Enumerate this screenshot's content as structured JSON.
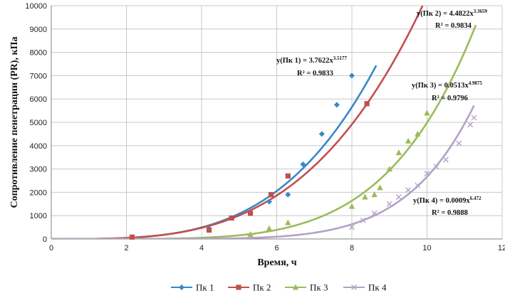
{
  "chart_data": {
    "type": "scatter",
    "title": "",
    "xlabel": "Время, ч",
    "ylabel": "Сопротивление пенетрации (PR), кПа",
    "xlim": [
      0,
      12
    ],
    "ylim": [
      0,
      10000
    ],
    "x_ticks": [
      "0",
      "2",
      "4",
      "6",
      "8",
      "10",
      "12"
    ],
    "y_ticks": [
      "0",
      "1000",
      "2000",
      "3000",
      "4000",
      "5000",
      "6000",
      "7000",
      "8000",
      "9000",
      "10000"
    ],
    "grid": "vertical-and-horizontal",
    "legend_position": "bottom",
    "series": [
      {
        "name": "Пк 1",
        "color": "#3a87c8",
        "marker": "diamond",
        "points": [
          [
            4.2,
            450
          ],
          [
            5.8,
            1600
          ],
          [
            6.3,
            1900
          ],
          [
            6.7,
            3200
          ],
          [
            7.2,
            4500
          ],
          [
            7.6,
            5750
          ],
          [
            8.0,
            7000
          ]
        ],
        "fit": {
          "a": 3.7622,
          "b": 3.5177,
          "x_range": [
            0,
            8.65
          ]
        },
        "equation_main": "y(Пк 1) = 3.7622x",
        "equation_exp": "3.5177",
        "r2": "R² = 0.9833"
      },
      {
        "name": "Пк 2",
        "color": "#c0504d",
        "marker": "square",
        "points": [
          [
            2.15,
            80
          ],
          [
            4.2,
            380
          ],
          [
            4.8,
            900
          ],
          [
            5.3,
            1100
          ],
          [
            5.85,
            1900
          ],
          [
            6.3,
            2700
          ],
          [
            8.4,
            5800
          ]
        ],
        "fit": {
          "a": 4.4822,
          "b": 3.3659,
          "x_range": [
            0,
            9.9
          ]
        },
        "equation_main": "y(Пк 2) = 4.4822x",
        "equation_exp": "3.3659",
        "r2": "R² = 0.9834"
      },
      {
        "name": "Пк 3",
        "color": "#9bbb59",
        "marker": "triangle",
        "points": [
          [
            5.3,
            200
          ],
          [
            5.8,
            450
          ],
          [
            6.3,
            700
          ],
          [
            8.0,
            1400
          ],
          [
            8.35,
            1800
          ],
          [
            8.6,
            1900
          ],
          [
            8.75,
            2200
          ],
          [
            9.0,
            3000
          ],
          [
            9.25,
            3700
          ],
          [
            9.5,
            4200
          ],
          [
            9.75,
            4500
          ],
          [
            10.0,
            5400
          ]
        ],
        "fit": {
          "a": 0.0513,
          "b": 4.9875,
          "x_range": [
            0,
            11.3
          ]
        },
        "equation_main": "y(Пк 3) = 0.0513x",
        "equation_exp": "4.9875",
        "r2": "R² = 0.9796"
      },
      {
        "name": "Пк 4",
        "color": "#b3a2c7",
        "marker": "x",
        "points": [
          [
            8.0,
            500
          ],
          [
            8.3,
            800
          ],
          [
            8.6,
            1100
          ],
          [
            9.0,
            1500
          ],
          [
            9.25,
            1800
          ],
          [
            9.5,
            2100
          ],
          [
            9.75,
            2300
          ],
          [
            10.0,
            2800
          ],
          [
            10.25,
            3100
          ],
          [
            10.5,
            3400
          ],
          [
            10.85,
            4100
          ],
          [
            11.15,
            4900
          ],
          [
            11.25,
            5200
          ]
        ],
        "fit": {
          "a": 0.0009,
          "b": 6.472,
          "x_range": [
            0,
            11.25
          ]
        },
        "equation_main": "y(Пк 4) = 0.0009x",
        "equation_exp": "6.472",
        "r2": "R² = 0.9888"
      }
    ]
  }
}
